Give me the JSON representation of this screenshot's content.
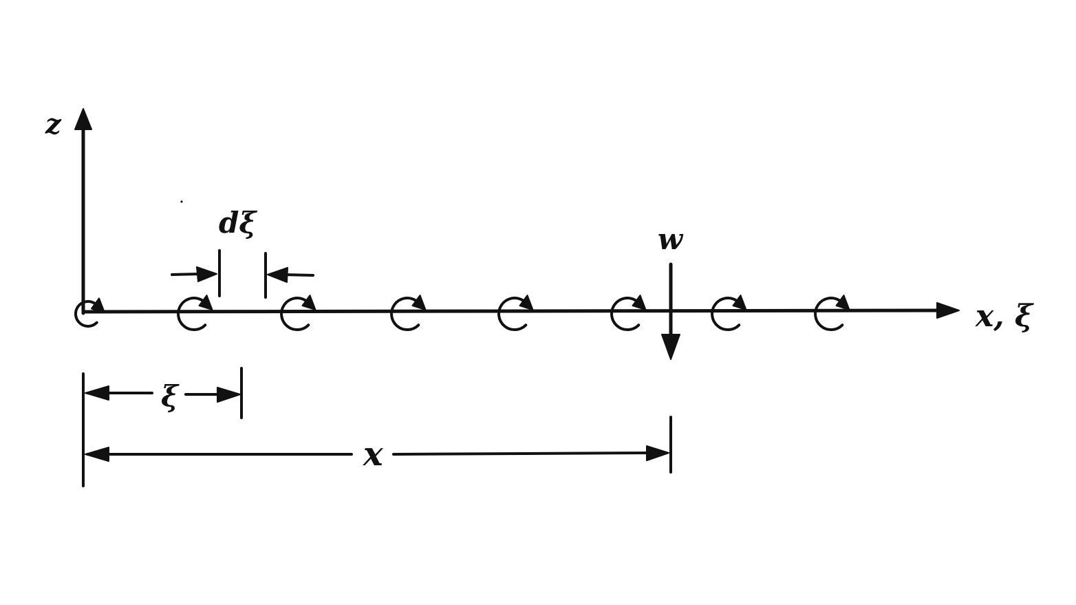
{
  "labels": {
    "z_axis": "z",
    "x_axis": "x, ξ",
    "d_xi": "dξ",
    "w": "w",
    "xi": "ξ",
    "x": "x"
  },
  "vortices": {
    "count": 8,
    "sense": "clockwise",
    "icon": "circular-arrow-icon"
  },
  "colors": {
    "ink": "#111111",
    "background": "#ffffff"
  }
}
